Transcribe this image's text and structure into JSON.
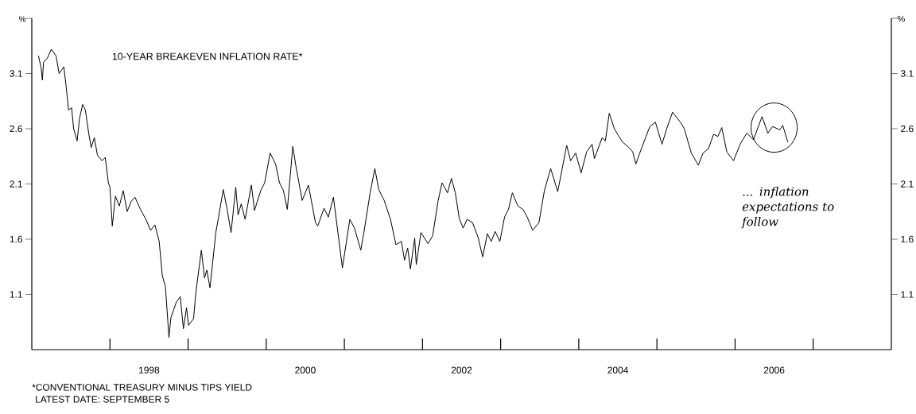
{
  "chart_data": {
    "type": "line",
    "title": "10-YEAR BREAKEVEN INFLATION RATE*",
    "ylabel": "%",
    "y2label": "%",
    "annotations": [
      "... inflation expectations to follow",
      "*CONVENTIONAL TREASURY MINUS TIPS YIELD",
      "LATEST DATE: SEPTEMBER 5"
    ],
    "xlim": [
      1997,
      2008
    ],
    "xticks": [
      {
        "value": 1998,
        "label": null
      },
      {
        "value": 1998.5,
        "label": "1998"
      },
      {
        "value": 1999,
        "label": null
      },
      {
        "value": 2000,
        "label": null
      },
      {
        "value": 2000.5,
        "label": "2000"
      },
      {
        "value": 2001,
        "label": null
      },
      {
        "value": 2002,
        "label": null
      },
      {
        "value": 2002.5,
        "label": "2002"
      },
      {
        "value": 2003,
        "label": null
      },
      {
        "value": 2004,
        "label": null
      },
      {
        "value": 2004.5,
        "label": "2004"
      },
      {
        "value": 2005,
        "label": null
      },
      {
        "value": 2006,
        "label": null
      },
      {
        "value": 2006.5,
        "label": "2006"
      },
      {
        "value": 2007,
        "label": null
      }
    ],
    "ylim": [
      0.6,
      3.6
    ],
    "yticks": [
      1.1,
      1.6,
      2.1,
      2.6,
      3.1,
      {
        "value": 3.6,
        "label": null
      }
    ],
    "y2lim": [
      0.6,
      3.6
    ],
    "y2ticks": [
      1.1,
      1.6,
      2.1,
      2.6,
      3.1,
      {
        "value": 3.6,
        "label": null
      }
    ],
    "series": [
      {
        "color": "#000000",
        "x": [
          1997.085,
          1997.12,
          1997.135,
          1997.15,
          1997.2,
          1997.25,
          1997.31,
          1997.35,
          1997.41,
          1997.44,
          1997.47,
          1997.51,
          1997.535,
          1997.58,
          1997.61,
          1997.65,
          1997.685,
          1997.73,
          1997.76,
          1997.8,
          1997.84,
          1997.9,
          1997.94,
          1997.98,
          1998.0,
          1998.03,
          1998.07,
          1998.12,
          1998.17,
          1998.22,
          1998.27,
          1998.32,
          1998.39,
          1998.46,
          1998.52,
          1998.575,
          1998.63,
          1998.67,
          1998.71,
          1998.755,
          1998.78,
          1998.85,
          1998.9,
          1998.94,
          1998.98,
          1999.005,
          1999.07,
          1999.1,
          1999.17,
          1999.21,
          1999.24,
          1999.28,
          1999.355,
          1999.39,
          1999.45,
          1999.5,
          1999.55,
          1999.61,
          1999.64,
          1999.68,
          1999.73,
          1999.81,
          1999.85,
          1999.93,
          1999.98,
          2000.05,
          2000.12,
          2000.17,
          2000.22,
          2000.27,
          2000.34,
          2000.38,
          2000.46,
          2000.54,
          2000.63,
          2000.66,
          2000.74,
          2000.795,
          2000.86,
          2000.975,
          2001.07,
          2001.13,
          2001.21,
          2001.25,
          2001.33,
          2001.39,
          2001.44,
          2001.51,
          2001.59,
          2001.66,
          2001.73,
          2001.77,
          2001.81,
          2001.845,
          2001.9,
          2001.92,
          2001.98,
          2002.07,
          2002.13,
          2002.2,
          2002.25,
          2002.32,
          2002.37,
          2002.42,
          2002.47,
          2002.52,
          2002.57,
          2002.64,
          2002.71,
          2002.77,
          2002.83,
          2002.88,
          2002.93,
          2002.99,
          2003.05,
          2003.1,
          2003.15,
          2003.22,
          2003.285,
          2003.34,
          2003.41,
          2003.49,
          2003.56,
          2003.64,
          2003.73,
          2003.78,
          2003.845,
          2003.895,
          2003.96,
          2004.03,
          2004.1,
          2004.17,
          2004.2,
          2004.3,
          2004.34,
          2004.39,
          2004.455,
          2004.505,
          2004.56,
          2004.64,
          2004.69,
          2004.73,
          2004.78,
          2004.86,
          2004.91,
          2004.98,
          2005.065,
          2005.125,
          2005.2,
          2005.3,
          2005.35,
          2005.44,
          2005.53,
          2005.59,
          2005.66,
          2005.725,
          2005.78,
          2005.83,
          2005.895,
          2005.98,
          2006.065,
          2006.15,
          2006.235,
          2006.345,
          2006.42,
          2006.48,
          2006.57,
          2006.61,
          2006.675
        ],
        "values": [
          3.26,
          3.15,
          3.04,
          3.2,
          3.24,
          3.32,
          3.26,
          3.1,
          3.16,
          2.98,
          2.77,
          2.79,
          2.6,
          2.49,
          2.69,
          2.82,
          2.77,
          2.55,
          2.43,
          2.52,
          2.36,
          2.31,
          2.34,
          2.11,
          2.07,
          1.72,
          1.99,
          1.9,
          2.04,
          1.85,
          1.94,
          1.98,
          1.87,
          1.78,
          1.68,
          1.73,
          1.58,
          1.27,
          1.17,
          0.71,
          0.89,
          1.03,
          1.08,
          0.79,
          0.98,
          0.82,
          0.88,
          1.12,
          1.5,
          1.25,
          1.32,
          1.16,
          1.66,
          1.8,
          2.05,
          1.87,
          1.66,
          2.07,
          1.82,
          1.92,
          1.78,
          2.09,
          1.86,
          2.04,
          2.11,
          2.38,
          2.28,
          2.11,
          2.04,
          1.87,
          2.44,
          2.26,
          1.95,
          2.09,
          1.75,
          1.72,
          1.88,
          1.8,
          1.98,
          1.34,
          1.78,
          1.7,
          1.5,
          1.66,
          2.02,
          2.24,
          2.05,
          1.95,
          1.78,
          1.55,
          1.58,
          1.41,
          1.52,
          1.33,
          1.61,
          1.37,
          1.66,
          1.56,
          1.63,
          1.95,
          2.11,
          2.02,
          2.15,
          2.02,
          1.79,
          1.7,
          1.78,
          1.75,
          1.62,
          1.44,
          1.65,
          1.58,
          1.67,
          1.58,
          1.8,
          1.87,
          2.02,
          1.9,
          1.87,
          1.8,
          1.68,
          1.75,
          2.04,
          2.24,
          2.03,
          2.21,
          2.45,
          2.31,
          2.38,
          2.2,
          2.39,
          2.46,
          2.33,
          2.52,
          2.49,
          2.74,
          2.6,
          2.54,
          2.48,
          2.43,
          2.39,
          2.28,
          2.38,
          2.53,
          2.62,
          2.66,
          2.46,
          2.6,
          2.75,
          2.66,
          2.6,
          2.38,
          2.27,
          2.38,
          2.42,
          2.55,
          2.53,
          2.61,
          2.39,
          2.31,
          2.46,
          2.56,
          2.5,
          2.71,
          2.56,
          2.62,
          2.59,
          2.63,
          2.48
        ]
      }
    ]
  }
}
